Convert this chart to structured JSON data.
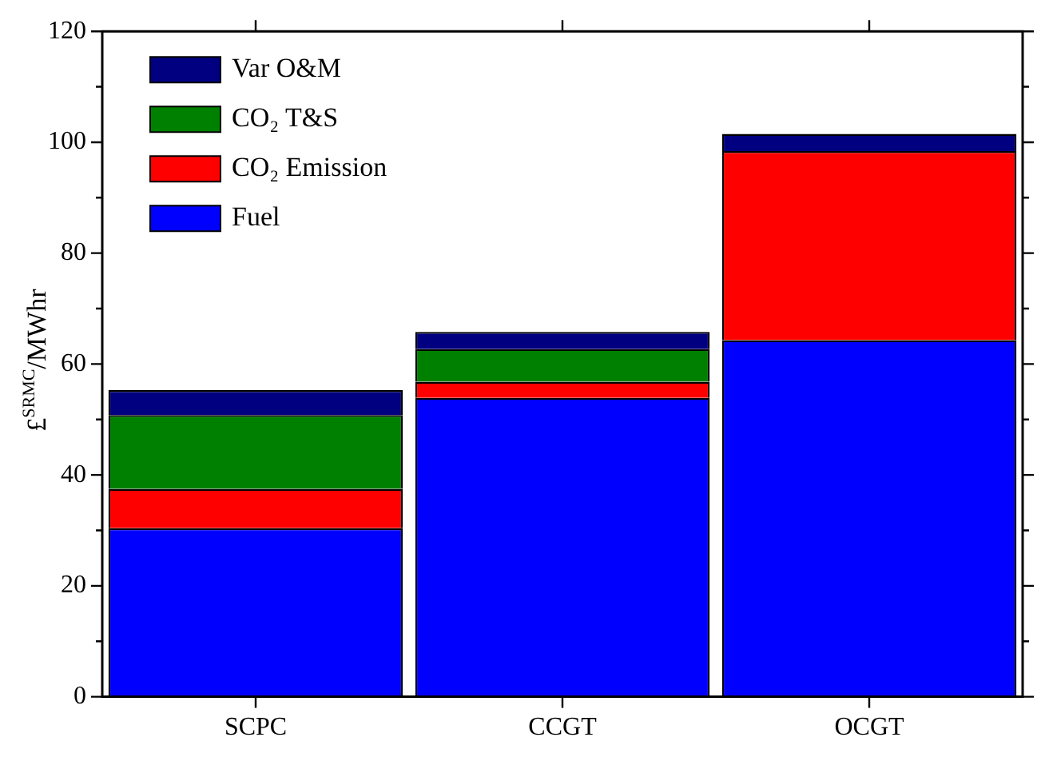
{
  "chart_data": {
    "type": "bar",
    "stacked": true,
    "ylabel": "£$^{SRMC}$/MWhr",
    "categories": [
      "SCPC",
      "CCGT",
      "OCGT"
    ],
    "series": [
      {
        "name": "Fuel",
        "color": "#0000ff",
        "values": [
          30.4,
          53.9,
          64.3
        ]
      },
      {
        "name": "CO₂ Emission",
        "color": "#ff0000",
        "values": [
          7.1,
          2.9,
          34.1
        ]
      },
      {
        "name": "CO₂ T&S",
        "color": "#008000",
        "values": [
          13.3,
          5.9,
          0
        ]
      },
      {
        "name": "Var O&M",
        "color": "#000080",
        "values": [
          4.5,
          3.1,
          3.1
        ]
      }
    ],
    "ylim": [
      0,
      120
    ],
    "yticks": [
      0,
      20,
      40,
      60,
      80,
      100,
      120
    ],
    "grid": false,
    "legend": "top left"
  }
}
